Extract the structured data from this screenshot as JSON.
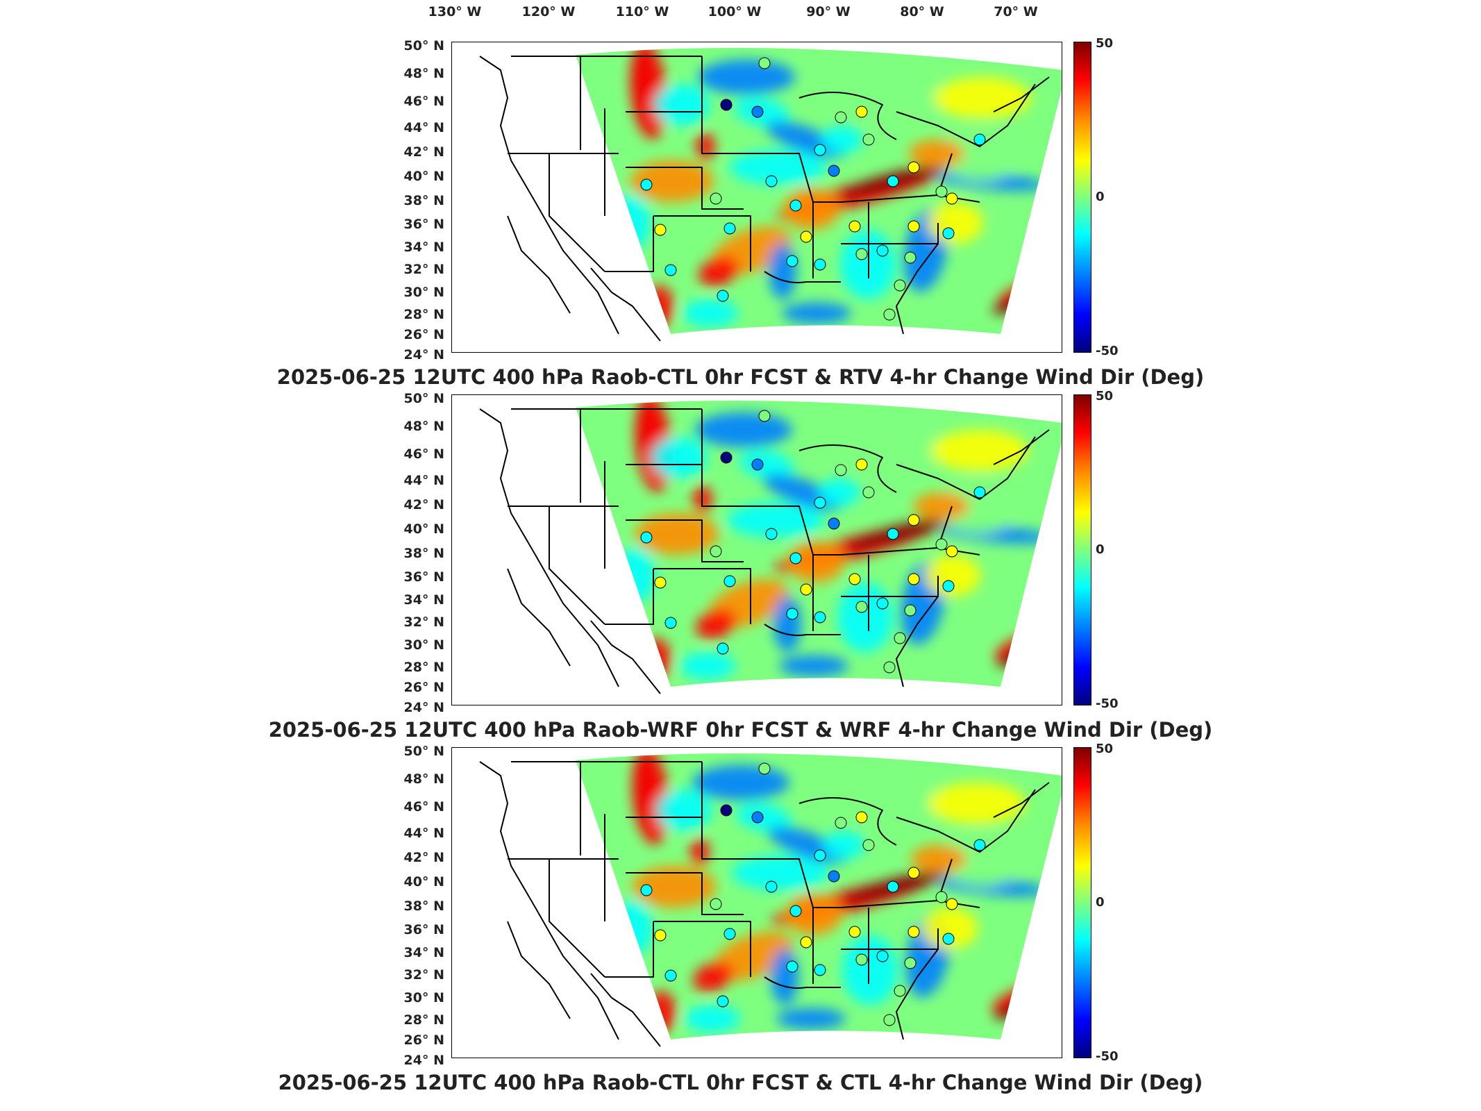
{
  "longitude_labels": [
    "130° W",
    "120° W",
    "110° W",
    "100° W",
    "90° W",
    "80° W",
    "70° W"
  ],
  "latitude_labels": [
    "50° N",
    "48° N",
    "46° N",
    "44° N",
    "42° N",
    "40° N",
    "38° N",
    "36° N",
    "34° N",
    "32° N",
    "30° N",
    "28° N",
    "26° N",
    "24° N"
  ],
  "colorbar": {
    "max_label": "50",
    "mid_label": "0",
    "min_label": "-50"
  },
  "colors": {
    "dark_red": "#7f0000",
    "red": "#ff0000",
    "orange": "#ff8c00",
    "yellow": "#ffff00",
    "green": "#7fff7f",
    "cyan": "#00ffff",
    "blue": "#0080ff",
    "dark_blue": "#00007f"
  },
  "panels": [
    {
      "title": "2025-06-25 12UTC 400 hPa Raob-CTL 0hr FCST & RTV 4-hr Change Wind Dir (Deg)"
    },
    {
      "title": "2025-06-25 12UTC 400 hPa Raob-WRF 0hr FCST & WRF 4-hr Change Wind Dir (Deg)"
    },
    {
      "title": "2025-06-25 12UTC 400 hPa Raob-CTL 0hr FCST & CTL 4-hr Change Wind Dir (Deg)"
    }
  ]
}
